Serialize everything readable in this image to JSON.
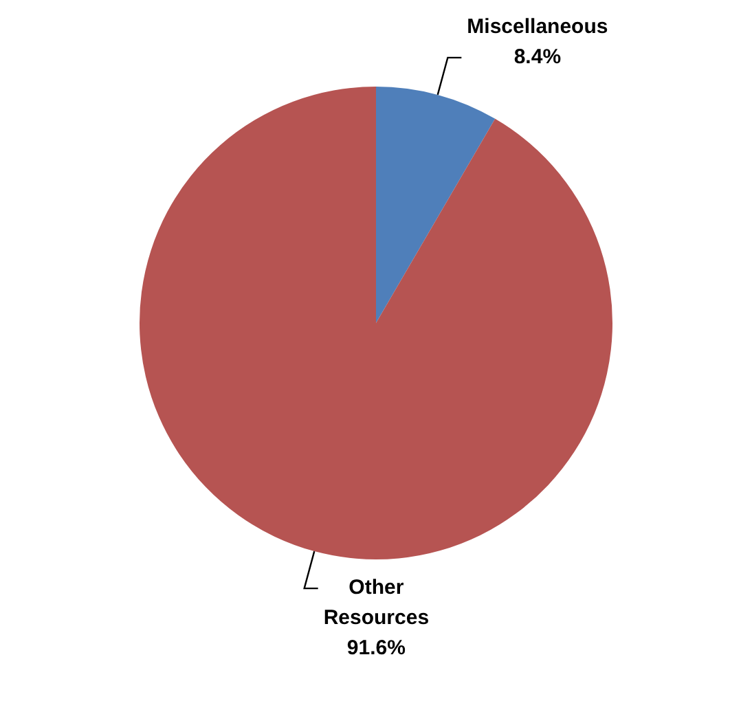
{
  "chart_data": {
    "type": "pie",
    "categories": [
      "Miscellaneous",
      "Other Resources"
    ],
    "values": [
      8.4,
      91.6
    ],
    "colors": [
      "#4f7fba",
      "#b65452"
    ],
    "value_labels": [
      "8.4%",
      "91.6%"
    ],
    "legend": false
  }
}
